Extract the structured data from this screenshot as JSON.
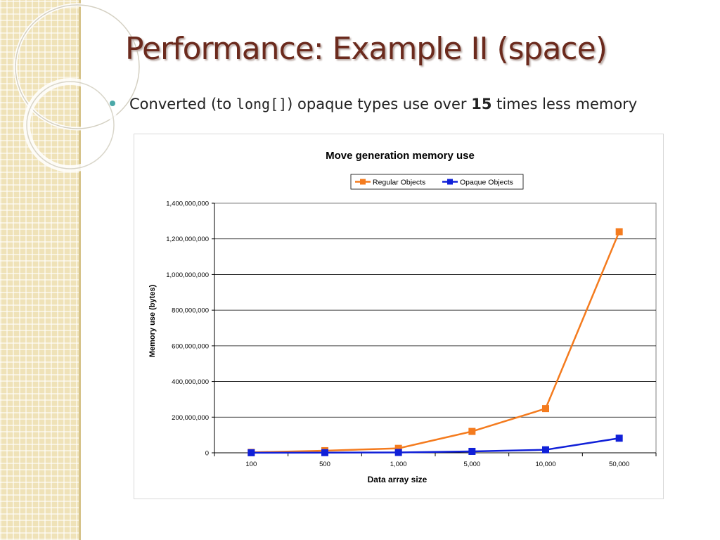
{
  "slide": {
    "title": "Performance: Example II (space)",
    "bullet": {
      "text_before": "Converted (to ",
      "code": "long[]",
      "text_middle": ") opaque types use over ",
      "bold": "15",
      "text_after": " times less memory"
    }
  },
  "colors": {
    "title": "#6b2a1d",
    "bullet_dot": "#4aa8a8",
    "regular": "#f47b1e",
    "opaque": "#1020d8"
  },
  "chart_data": {
    "type": "line",
    "title": "Move generation memory use",
    "xlabel": "Data array size",
    "ylabel": "Memory use (bytes)",
    "categories": [
      "100",
      "500",
      "1,000",
      "5,000",
      "10,000",
      "50,000"
    ],
    "ylim": [
      0,
      1400000000
    ],
    "yticks": [
      0,
      200000000,
      400000000,
      600000000,
      800000000,
      1000000000,
      1200000000,
      1400000000
    ],
    "ytick_labels": [
      "0",
      "200,000,000",
      "400,000,000",
      "600,000,000",
      "800,000,000",
      "1,000,000,000",
      "1,200,000,000",
      "1,400,000,000"
    ],
    "grid": true,
    "legend_position": "top",
    "series": [
      {
        "name": "Regular Objects",
        "color": "#f47b1e",
        "marker": "square",
        "values": [
          2500000,
          12000000,
          25000000,
          120000000,
          248000000,
          1240000000
        ]
      },
      {
        "name": "Opaque Objects",
        "color": "#1020d8",
        "marker": "square",
        "values": [
          500000,
          1000000,
          2000000,
          8000000,
          17000000,
          82000000
        ]
      }
    ]
  }
}
